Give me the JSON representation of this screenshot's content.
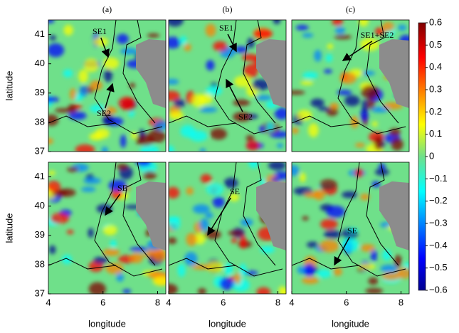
{
  "chart_data": {
    "type": "heatmap-grid",
    "xlabel": "longitude",
    "ylabel": "latitude",
    "xlim": [
      4,
      8.3
    ],
    "ylim": [
      37,
      41.5
    ],
    "xticks": [
      4,
      6,
      8
    ],
    "yticks": [
      37,
      38,
      39,
      40,
      41
    ],
    "panels": [
      {
        "label": "(a)",
        "annotations": [
          "SE1",
          "SE2"
        ]
      },
      {
        "label": "(b)",
        "annotations": [
          "SE1",
          "SE2"
        ]
      },
      {
        "label": "(c)",
        "annotations": [
          "SE1+SE2"
        ]
      },
      {
        "annotations": [
          "SE"
        ]
      },
      {
        "annotations": [
          "SE"
        ]
      },
      {
        "annotations": [
          "SE"
        ]
      }
    ],
    "colorbar": {
      "clim": [
        -0.6,
        0.6
      ],
      "ticks": [
        0.6,
        0.5,
        0.4,
        0.3,
        0.2,
        0.1,
        0,
        {
          "value": -0.1,
          "label": "−0.1"
        },
        {
          "value": -0.2,
          "label": "−0.2"
        },
        {
          "value": -0.3,
          "label": "−0.3"
        },
        {
          "value": -0.4,
          "label": "−0.4"
        },
        {
          "value": -0.5,
          "label": "−0.5"
        },
        {
          "value": -0.6,
          "label": "−0.6"
        }
      ]
    }
  }
}
